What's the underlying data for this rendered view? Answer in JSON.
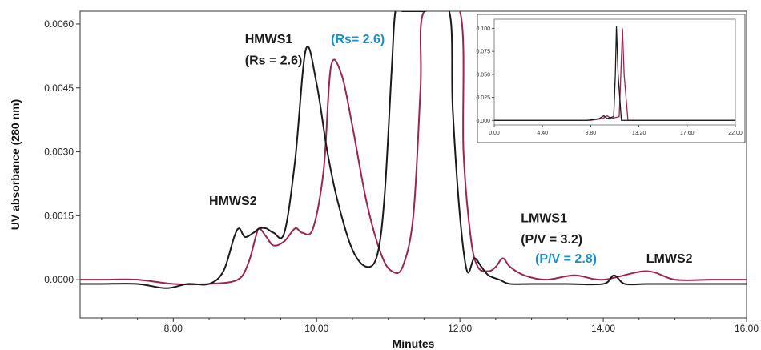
{
  "chart_data": [
    {
      "type": "line",
      "xlabel": "Minutes",
      "ylabel": "UV absorbance (280 nm)",
      "xlim": [
        6.7,
        16.0
      ],
      "ylim": [
        -0.0009,
        0.0063
      ],
      "x_ticks": [
        "8.00",
        "10.00",
        "12.00",
        "14.00",
        "16.00"
      ],
      "y_ticks": [
        "0.0000",
        "0.0015",
        "0.0030",
        "0.0045",
        "0.0060"
      ],
      "grid": false,
      "colors": {
        "black_series": "#1a1a1a",
        "magenta_series": "#9b2453",
        "blue_annotation": "#1b8fc9"
      },
      "series": [
        {
          "color": "#1a1a1a",
          "x": [
            6.7,
            7.0,
            7.5,
            7.9,
            8.2,
            8.5,
            8.7,
            8.85,
            8.92,
            9.0,
            9.12,
            9.2,
            9.3,
            9.4,
            9.55,
            9.7,
            9.85,
            10.0,
            10.15,
            10.3,
            10.5,
            10.7,
            10.85,
            10.95,
            11.05,
            11.1,
            11.2,
            11.5,
            11.85,
            11.9,
            12.0,
            12.1,
            12.2,
            12.3,
            12.4,
            12.55,
            12.7,
            13.0,
            13.5,
            14.0,
            14.15,
            14.3,
            14.6,
            15.0,
            15.5,
            16.0
          ],
          "y": [
            -0.0001,
            -0.0001,
            -0.0001,
            -0.0002,
            -0.0001,
            -0.0001,
            0.0002,
            0.001,
            0.0012,
            0.001,
            0.0011,
            0.0012,
            0.0012,
            0.0011,
            0.0011,
            0.0028,
            0.0054,
            0.0046,
            0.003,
            0.0018,
            0.0007,
            0.0003,
            0.0006,
            0.002,
            0.005,
            0.0063,
            0.0063,
            0.0063,
            0.0063,
            0.004,
            0.0015,
            0.0002,
            0.0005,
            0.0003,
            0.0001,
            0.0,
            -0.0001,
            -0.0001,
            -0.0001,
            -0.0001,
            0.0001,
            -0.0001,
            -0.0001,
            -0.0001,
            -0.0001,
            -0.0001
          ]
        },
        {
          "color": "#9b2453",
          "x": [
            6.7,
            7.0,
            7.5,
            8.0,
            8.5,
            8.9,
            9.05,
            9.15,
            9.2,
            9.3,
            9.4,
            9.55,
            9.7,
            9.8,
            9.95,
            10.1,
            10.2,
            10.35,
            10.5,
            10.7,
            10.9,
            11.05,
            11.2,
            11.35,
            11.45,
            11.5,
            12.0,
            12.05,
            12.15,
            12.25,
            12.4,
            12.5,
            12.6,
            12.7,
            12.9,
            13.2,
            13.6,
            14.0,
            14.6,
            15.0,
            15.5,
            16.0
          ],
          "y": [
            0.0,
            0.0,
            0.0,
            -0.0001,
            -0.0001,
            0.0,
            0.0004,
            0.001,
            0.0012,
            0.001,
            0.0008,
            0.0009,
            0.0012,
            0.0011,
            0.0012,
            0.0026,
            0.005,
            0.0048,
            0.0036,
            0.0018,
            0.0006,
            0.0002,
            0.0003,
            0.0015,
            0.0045,
            0.0063,
            0.0063,
            0.003,
            0.001,
            0.0003,
            0.0002,
            0.0003,
            0.0005,
            0.0003,
            0.0001,
            0.0,
            0.0001,
            0.0,
            0.0002,
            0.0,
            0.0,
            0.0
          ]
        }
      ],
      "annotations": [
        {
          "text": "HMWS1",
          "x": 9.0,
          "y": 0.00555,
          "color": "#1a1a1a"
        },
        {
          "text": "(Rs = 2.6)",
          "x": 9.0,
          "y": 0.00505,
          "color": "#1a1a1a"
        },
        {
          "text": "(Rs= 2.6)",
          "x": 10.2,
          "y": 0.00555,
          "color": "#1b8fc9"
        },
        {
          "text": "HMWS2",
          "x": 8.5,
          "y": 0.00175,
          "color": "#1a1a1a"
        },
        {
          "text": "LMWS1",
          "x": 12.85,
          "y": 0.00135,
          "color": "#1a1a1a"
        },
        {
          "text": "(P/V = 3.2)",
          "x": 12.85,
          "y": 0.00085,
          "color": "#1a1a1a"
        },
        {
          "text": "(P/V = 2.8)",
          "x": 13.05,
          "y": 0.0004,
          "color": "#1b8fc9"
        },
        {
          "text": "LMWS2",
          "x": 14.6,
          "y": 0.0004,
          "color": "#1a1a1a"
        }
      ]
    },
    {
      "type": "line",
      "xlim": [
        0.0,
        22.0
      ],
      "ylim": [
        -0.005,
        0.11
      ],
      "x_ticks": [
        "0.00",
        "4.40",
        "8.80",
        "13.20",
        "17.60",
        "22.00"
      ],
      "y_ticks": [
        "0.000",
        "0.025",
        "0.050",
        "0.075",
        "0.100"
      ],
      "series": [
        {
          "color": "#1a1a1a",
          "x": [
            0.0,
            8.5,
            9.6,
            10.0,
            10.3,
            10.9,
            11.05,
            11.15,
            11.3,
            11.6,
            22.0
          ],
          "y": [
            0.0,
            0.0,
            0.002,
            0.005,
            0.002,
            0.004,
            0.05,
            0.102,
            0.05,
            0.0,
            0.0
          ]
        },
        {
          "color": "#9b2453",
          "x": [
            0.0,
            8.8,
            9.9,
            10.3,
            10.7,
            11.4,
            11.55,
            11.7,
            11.85,
            12.2,
            22.0
          ],
          "y": [
            0.0,
            0.0,
            0.002,
            0.005,
            0.002,
            0.004,
            0.05,
            0.1,
            0.05,
            0.0,
            0.0
          ]
        }
      ]
    }
  ]
}
